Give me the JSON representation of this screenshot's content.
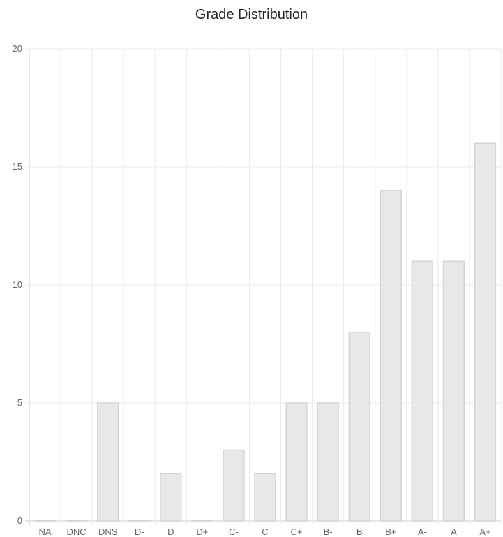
{
  "chart_data": {
    "type": "bar",
    "title": "Grade Distribution",
    "categories": [
      "NA",
      "DNC",
      "DNS",
      "D-",
      "D",
      "D+",
      "C-",
      "C",
      "C+",
      "B-",
      "B",
      "B+",
      "A-",
      "A",
      "A+"
    ],
    "values": [
      0,
      0,
      5,
      0,
      2,
      0,
      3,
      2,
      5,
      5,
      8,
      14,
      11,
      11,
      16
    ],
    "ylim": [
      0,
      20
    ],
    "yticks": [
      0,
      5,
      10,
      15,
      20
    ],
    "grid": true,
    "legend": "none",
    "colors": {
      "bar_fill": "#e8e8e8",
      "bar_stroke": "#d4d4d4",
      "grid": "#ebebeb",
      "axis": "#cccccc",
      "tick_text": "#666666"
    }
  }
}
